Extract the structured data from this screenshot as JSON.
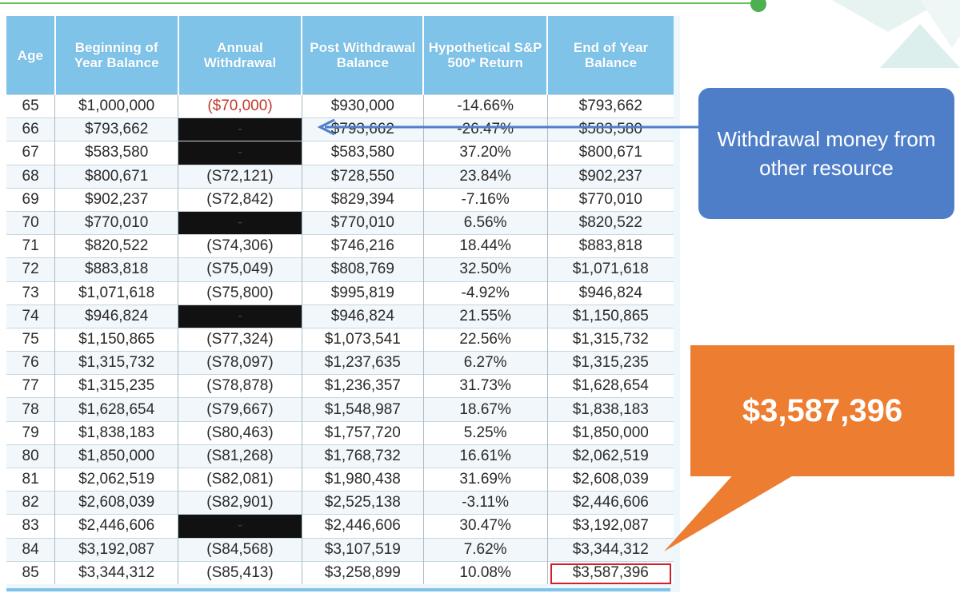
{
  "table": {
    "headers": {
      "age": "Age",
      "beginning": "Beginning of Year Balance",
      "withdrawal": "Annual Withdrawal",
      "post": "Post Withdrawal Balance",
      "return": "Hypothetical S&P 500* Return",
      "end": "End of Year Balance"
    },
    "rows": [
      {
        "age": "65",
        "beginning": "$1,000,000",
        "withdrawal": "($70,000)",
        "post": "$930,000",
        "return": "-14.66%",
        "end": "$793,662"
      },
      {
        "age": "66",
        "beginning": "$793,662",
        "withdrawal": "-",
        "post": "$793,662",
        "return": "-26.47%",
        "end": "$583,580"
      },
      {
        "age": "67",
        "beginning": "$583,580",
        "withdrawal": "-",
        "post": "$583,580",
        "return": "37.20%",
        "end": "$800,671"
      },
      {
        "age": "68",
        "beginning": "$800,671",
        "withdrawal": "(S72,121)",
        "post": "$728,550",
        "return": "23.84%",
        "end": "$902,237"
      },
      {
        "age": "69",
        "beginning": "$902,237",
        "withdrawal": "(S72,842)",
        "post": "$829,394",
        "return": "-7.16%",
        "end": "$770,010"
      },
      {
        "age": "70",
        "beginning": "$770,010",
        "withdrawal": "-",
        "post": "$770,010",
        "return": "6.56%",
        "end": "$820,522"
      },
      {
        "age": "71",
        "beginning": "$820,522",
        "withdrawal": "(S74,306)",
        "post": "$746,216",
        "return": "18.44%",
        "end": "$883,818"
      },
      {
        "age": "72",
        "beginning": "$883,818",
        "withdrawal": "(S75,049)",
        "post": "$808,769",
        "return": "32.50%",
        "end": "$1,071,618"
      },
      {
        "age": "73",
        "beginning": "$1,071,618",
        "withdrawal": "(S75,800)",
        "post": "$995,819",
        "return": "-4.92%",
        "end": "$946,824"
      },
      {
        "age": "74",
        "beginning": "$946,824",
        "withdrawal": "-",
        "post": "$946,824",
        "return": "21.55%",
        "end": "$1,150,865"
      },
      {
        "age": "75",
        "beginning": "$1,150,865",
        "withdrawal": "(S77,324)",
        "post": "$1,073,541",
        "return": "22.56%",
        "end": "$1,315,732"
      },
      {
        "age": "76",
        "beginning": "$1,315,732",
        "withdrawal": "(S78,097)",
        "post": "$1,237,635",
        "return": "6.27%",
        "end": "$1,315,235"
      },
      {
        "age": "77",
        "beginning": "$1,315,235",
        "withdrawal": "(S78,878)",
        "post": "$1,236,357",
        "return": "31.73%",
        "end": "$1,628,654"
      },
      {
        "age": "78",
        "beginning": "$1,628,654",
        "withdrawal": "(S79,667)",
        "post": "$1,548,987",
        "return": "18.67%",
        "end": "$1,838,183"
      },
      {
        "age": "79",
        "beginning": "$1,838,183",
        "withdrawal": "(S80,463)",
        "post": "$1,757,720",
        "return": "5.25%",
        "end": "$1,850,000"
      },
      {
        "age": "80",
        "beginning": "$1,850,000",
        "withdrawal": "(S81,268)",
        "post": "$1,768,732",
        "return": "16.61%",
        "end": "$2,062,519"
      },
      {
        "age": "81",
        "beginning": "$2,062,519",
        "withdrawal": "(S82,081)",
        "post": "$1,980,438",
        "return": "31.69%",
        "end": "$2,608,039"
      },
      {
        "age": "82",
        "beginning": "$2,608,039",
        "withdrawal": "(S82,901)",
        "post": "$2,525,138",
        "return": "-3.11%",
        "end": "$2,446,606"
      },
      {
        "age": "83",
        "beginning": "$2,446,606",
        "withdrawal": "-",
        "post": "$2,446,606",
        "return": "30.47%",
        "end": "$3,192,087"
      },
      {
        "age": "84",
        "beginning": "$3,192,087",
        "withdrawal": "(S84,568)",
        "post": "$3,107,519",
        "return": "7.62%",
        "end": "$3,344,312"
      },
      {
        "age": "85",
        "beginning": "$3,344,312",
        "withdrawal": "(S85,413)",
        "post": "$3,258,899",
        "return": "10.08%",
        "end": "$3,587,396"
      }
    ]
  },
  "callouts": {
    "blue_text": "Withdrawal money from other resource",
    "orange_text": "$3,587,396"
  },
  "colors": {
    "header_bg": "#7fc3e8",
    "blue_callout": "#4f7ec8",
    "orange_callout": "#ed7d31",
    "negative_withdrawal": "#c0392b",
    "highlight_box": "#d21f2a",
    "redacted_cell": "#111111"
  }
}
